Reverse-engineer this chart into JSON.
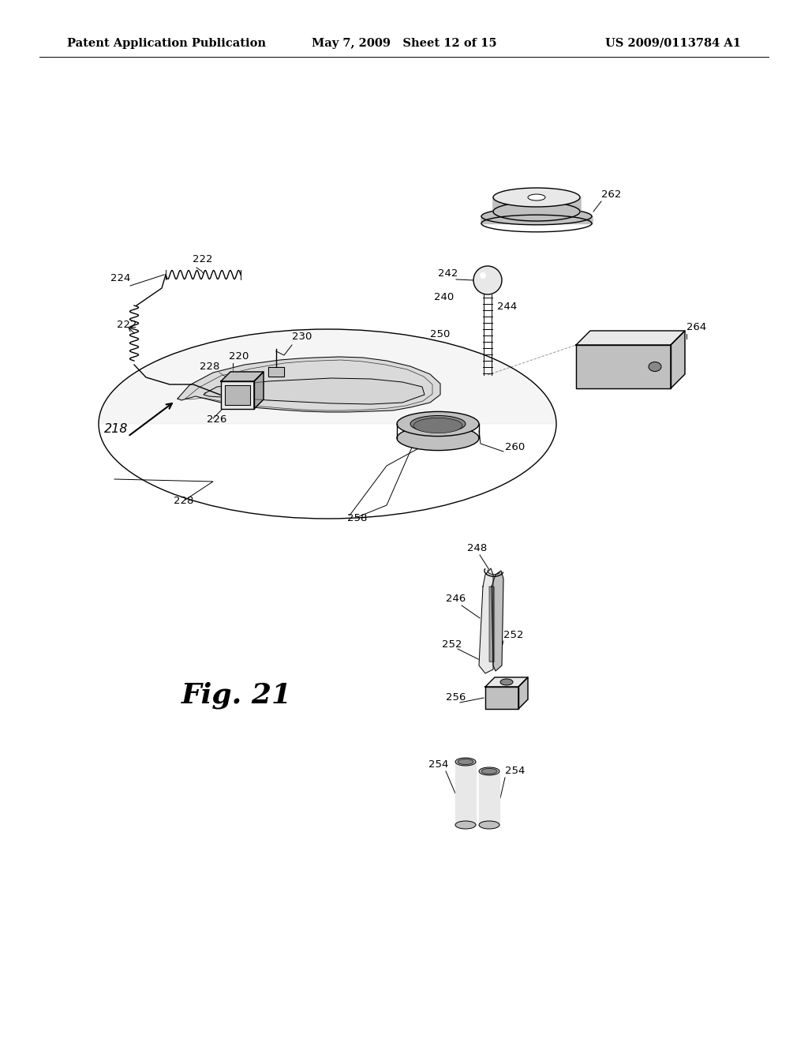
{
  "title_left": "Patent Application Publication",
  "title_mid": "May 7, 2009   Sheet 12 of 15",
  "title_right": "US 2009/0113784 A1",
  "fig_label": "Fig. 21",
  "bg_color": "#ffffff",
  "lc": "#000000",
  "header_font_size": 10.5,
  "fig_label_font_size": 26,
  "ann_font_size": 9.5,
  "lw_thin": 0.7,
  "lw_med": 1.0,
  "lw_thick": 1.4,
  "light_gray": "#e8e8e8",
  "mid_gray": "#c0c0c0",
  "dark_gray": "#888888"
}
